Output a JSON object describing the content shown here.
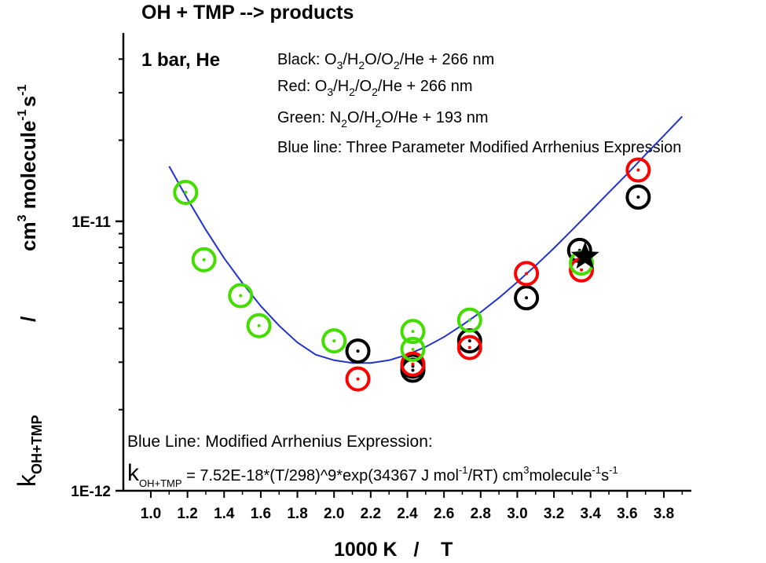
{
  "chart_data": {
    "type": "scatter",
    "title": "OH  +  TMP  --> products",
    "subtitle": "1 bar, He",
    "xlabel": "1000 K   /    T",
    "ylabel": {
      "k": "k",
      "k_sub": "OH+TMP",
      "slash": "/",
      "units_a": "cm",
      "units_b": "3",
      "units_c": " molecule",
      "units_d": "-1",
      "units_e": "s",
      "units_f": "-1"
    },
    "x_scale": "linear",
    "y_scale": "log",
    "xlim": [
      0.85,
      3.95
    ],
    "ylim": [
      1e-12,
      5e-11
    ],
    "x_ticks": [
      1.0,
      1.2,
      1.4,
      1.6,
      1.8,
      2.0,
      2.2,
      2.4,
      2.6,
      2.8,
      3.0,
      3.2,
      3.4,
      3.6,
      3.8
    ],
    "x_tick_labels": [
      "1.0",
      "1.2",
      "1.4",
      "1.6",
      "1.8",
      "2.0",
      "2.2",
      "2.4",
      "2.6",
      "2.8",
      "3.0",
      "3.2",
      "3.4",
      "3.6",
      "3.8"
    ],
    "y_major_ticks": [
      1e-12,
      1e-11
    ],
    "y_tick_labels": [
      "1E-12",
      "1E-11"
    ],
    "y_minor_ticks": [
      2e-12,
      3e-12,
      4e-12,
      5e-12,
      6e-12,
      7e-12,
      8e-12,
      9e-12,
      2e-11,
      3e-11,
      4e-11
    ],
    "grid": false,
    "legend_lines": [
      [
        "Black:  O",
        "3",
        "/H",
        "2",
        "O/O",
        "2",
        "/He + 266 nm"
      ],
      [
        "Red:    O",
        "3",
        "/H",
        "2",
        "/O",
        "2",
        "/He + 266 nm"
      ],
      [
        "Green:  N",
        "2",
        "O/H",
        "2",
        "O/He + 193 nm"
      ],
      [
        "Blue line: Three Parameter Modified Arrhenius Expression"
      ]
    ],
    "annotation_line1": "Blue Line:  Modified Arrhenius Expression:",
    "annotation_line2": {
      "k": "k",
      "k_sub": "OH+TMP",
      "eq": " = 7.52E-18*(T/298)^9*exp(34367 J mol",
      "sup1": "-1",
      "mid": "/RT) cm",
      "sup2": "3",
      "mid2": "molecule",
      "sup3": "-1",
      "mid3": "s",
      "sup4": "-1"
    },
    "series": [
      {
        "color": "#000000",
        "marker": "open-circle-dot",
        "x": [
          2.13,
          2.43,
          2.43,
          2.74,
          3.05,
          3.34,
          3.66
        ],
        "y": [
          3.3e-12,
          2.9e-12,
          2.8e-12,
          3.6e-12,
          5.2e-12,
          7.8e-12,
          1.23e-11
        ]
      },
      {
        "color": "#ff0000",
        "marker": "open-circle-dot",
        "x": [
          2.13,
          2.43,
          2.74,
          3.05,
          3.35,
          3.66
        ],
        "y": [
          2.6e-12,
          2.95e-12,
          3.4e-12,
          6.4e-12,
          6.6e-12,
          1.55e-11
        ]
      },
      {
        "color": "#44dd00",
        "marker": "open-circle-dot",
        "x": [
          1.19,
          1.29,
          1.49,
          1.59,
          2.0,
          2.43,
          2.43,
          2.74,
          3.35
        ],
        "y": [
          1.28e-11,
          7.2e-12,
          5.3e-12,
          4.1e-12,
          3.6e-12,
          3.9e-12,
          3.35e-12,
          4.3e-12,
          7e-12
        ]
      },
      {
        "color": "#000000",
        "marker": "star",
        "x": [
          3.37
        ],
        "y": [
          7.4e-12
        ]
      }
    ],
    "fit_line": {
      "color": "#2233cc",
      "x": [
        1.1,
        1.2,
        1.3,
        1.4,
        1.5,
        1.6,
        1.7,
        1.8,
        1.9,
        2.0,
        2.1,
        2.2,
        2.3,
        2.4,
        2.5,
        2.6,
        2.7,
        2.8,
        2.9,
        3.0,
        3.1,
        3.2,
        3.3,
        3.4,
        3.5,
        3.6,
        3.7,
        3.8,
        3.9
      ],
      "y": [
        1.6e-11,
        1.21e-11,
        9.3e-12,
        7.3e-12,
        5.9e-12,
        4.85e-12,
        4.1e-12,
        3.55e-12,
        3.2e-12,
        3.05e-12,
        2.98e-12,
        2.98e-12,
        3.05e-12,
        3.2e-12,
        3.42e-12,
        3.72e-12,
        4.12e-12,
        4.6e-12,
        5.2e-12,
        5.95e-12,
        6.85e-12,
        7.95e-12,
        9.3e-12,
        1.09e-11,
        1.28e-11,
        1.5e-11,
        1.77e-11,
        2.08e-11,
        2.45e-11
      ]
    }
  }
}
